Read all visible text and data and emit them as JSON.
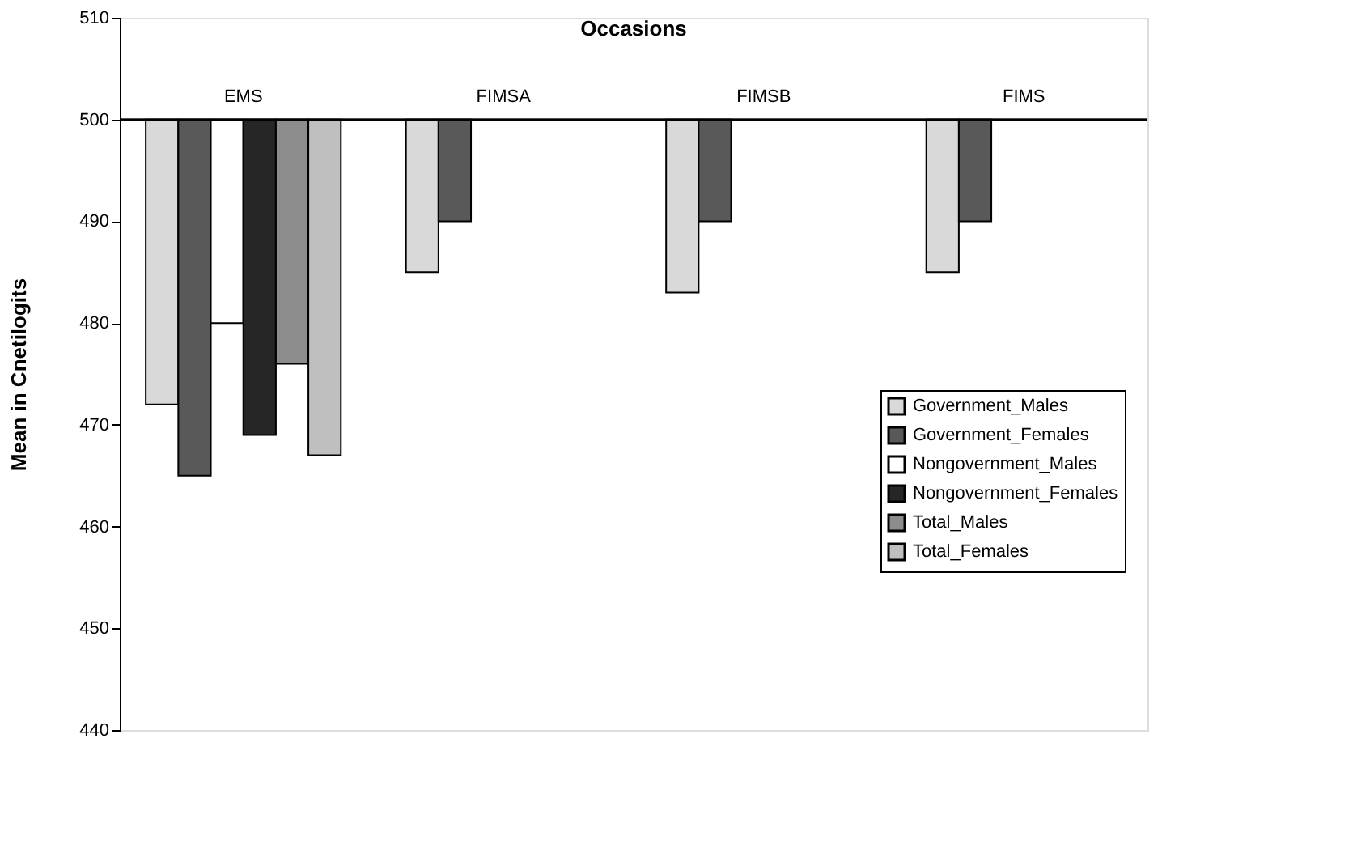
{
  "chart_data": {
    "type": "bar",
    "title": "Occasions",
    "ylabel": "Mean in Cnetilogits",
    "categories": [
      "EMS",
      "FIMSA",
      "FIMSB",
      "FIMS"
    ],
    "series": [
      {
        "name": "Government_Males",
        "color": "#d9d9d9",
        "base": [
          500,
          500,
          500,
          500
        ],
        "values": [
          -28,
          -15,
          -17,
          -15
        ]
      },
      {
        "name": "Government_Females",
        "color": "#595959",
        "base": [
          500,
          500,
          500,
          500
        ],
        "values": [
          -35,
          -10,
          -10,
          -10
        ]
      },
      {
        "name": "Nongovernment_Males",
        "color": "#ffffff",
        "base": [
          500,
          null,
          null,
          null
        ],
        "values": [
          -20,
          null,
          null,
          null
        ]
      },
      {
        "name": "Nongovernment_Females",
        "color": "#262626",
        "base": [
          500,
          null,
          null,
          null
        ],
        "values": [
          -31,
          null,
          null,
          null
        ]
      },
      {
        "name": "Total_Males",
        "color": "#8c8c8c",
        "base": [
          500,
          null,
          null,
          null
        ],
        "values": [
          -24,
          null,
          null,
          null
        ]
      },
      {
        "name": "Total_Females",
        "color": "#bfbfbf",
        "base": [
          500,
          null,
          null,
          null
        ],
        "values": [
          -33,
          null,
          null,
          null
        ]
      }
    ],
    "ylim": [
      440,
      510
    ],
    "yticks": [
      440,
      450,
      460,
      470,
      480,
      490,
      500,
      510
    ],
    "grid": false,
    "legend": "right"
  }
}
